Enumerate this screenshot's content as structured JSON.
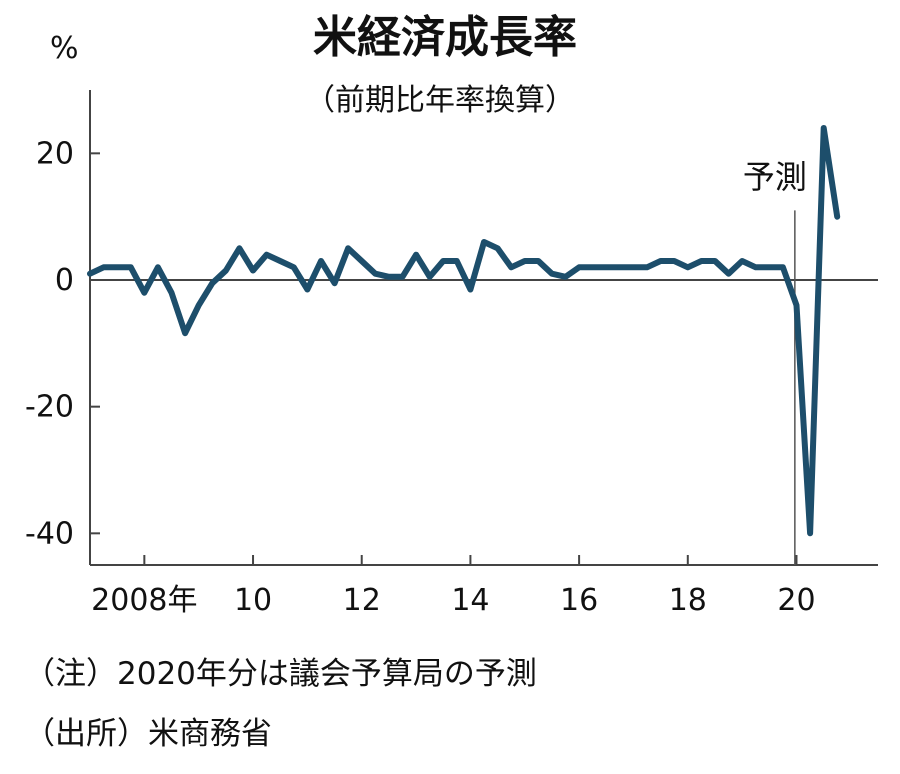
{
  "chart_data": {
    "type": "line",
    "title": "米経済成長率",
    "subtitle": "（前期比年率換算）",
    "unit": "%",
    "ylim": [
      -45,
      30
    ],
    "yticks": [
      {
        "value": 20,
        "label": "20"
      },
      {
        "value": 0,
        "label": "0"
      },
      {
        "value": -20,
        "label": "-20"
      },
      {
        "value": -40,
        "label": "-40"
      }
    ],
    "xlim": [
      2007,
      2021.5
    ],
    "xticks": [
      {
        "value": 2008,
        "label": "2008年"
      },
      {
        "value": 2010,
        "label": "10"
      },
      {
        "value": 2012,
        "label": "12"
      },
      {
        "value": 2014,
        "label": "14"
      },
      {
        "value": 2016,
        "label": "16"
      },
      {
        "value": 2018,
        "label": "18"
      },
      {
        "value": 2020,
        "label": "20"
      }
    ],
    "series": [
      {
        "color": "#1d4e6b",
        "x": [
          2007.0,
          2007.25,
          2007.5,
          2007.75,
          2008.0,
          2008.25,
          2008.5,
          2008.75,
          2009.0,
          2009.25,
          2009.5,
          2009.75,
          2010.0,
          2010.25,
          2010.5,
          2010.75,
          2011.0,
          2011.25,
          2011.5,
          2011.75,
          2012.0,
          2012.25,
          2012.5,
          2012.75,
          2013.0,
          2013.25,
          2013.5,
          2013.75,
          2014.0,
          2014.25,
          2014.5,
          2014.75,
          2015.0,
          2015.25,
          2015.5,
          2015.75,
          2016.0,
          2016.25,
          2016.5,
          2016.75,
          2017.0,
          2017.25,
          2017.5,
          2017.75,
          2018.0,
          2018.25,
          2018.5,
          2018.75,
          2019.0,
          2019.25,
          2019.5,
          2019.75,
          2020.0,
          2020.25,
          2020.5,
          2020.75
        ],
        "values": [
          1.0,
          2.0,
          2.0,
          2.0,
          -2.0,
          2.0,
          -2.0,
          -8.4,
          -4.0,
          -0.5,
          1.5,
          5.0,
          1.5,
          4.0,
          3.0,
          2.0,
          -1.5,
          3.0,
          -0.5,
          5.0,
          3.0,
          1.0,
          0.5,
          0.5,
          4.0,
          0.5,
          3.0,
          3.0,
          -1.5,
          6.0,
          5.0,
          2.0,
          3.0,
          3.0,
          1.0,
          0.5,
          2.0,
          2.0,
          2.0,
          2.0,
          2.0,
          2.0,
          3.0,
          3.0,
          2.0,
          3.0,
          3.0,
          1.0,
          3.0,
          2.0,
          2.0,
          2.0,
          -4.0,
          -40.0,
          24.0,
          10.0
        ]
      }
    ],
    "forecast_marker": {
      "x": 2019.97,
      "label": "予測"
    },
    "notes": [
      "（注）2020年分は議会予算局の予測",
      "（出所）米商務省"
    ]
  }
}
